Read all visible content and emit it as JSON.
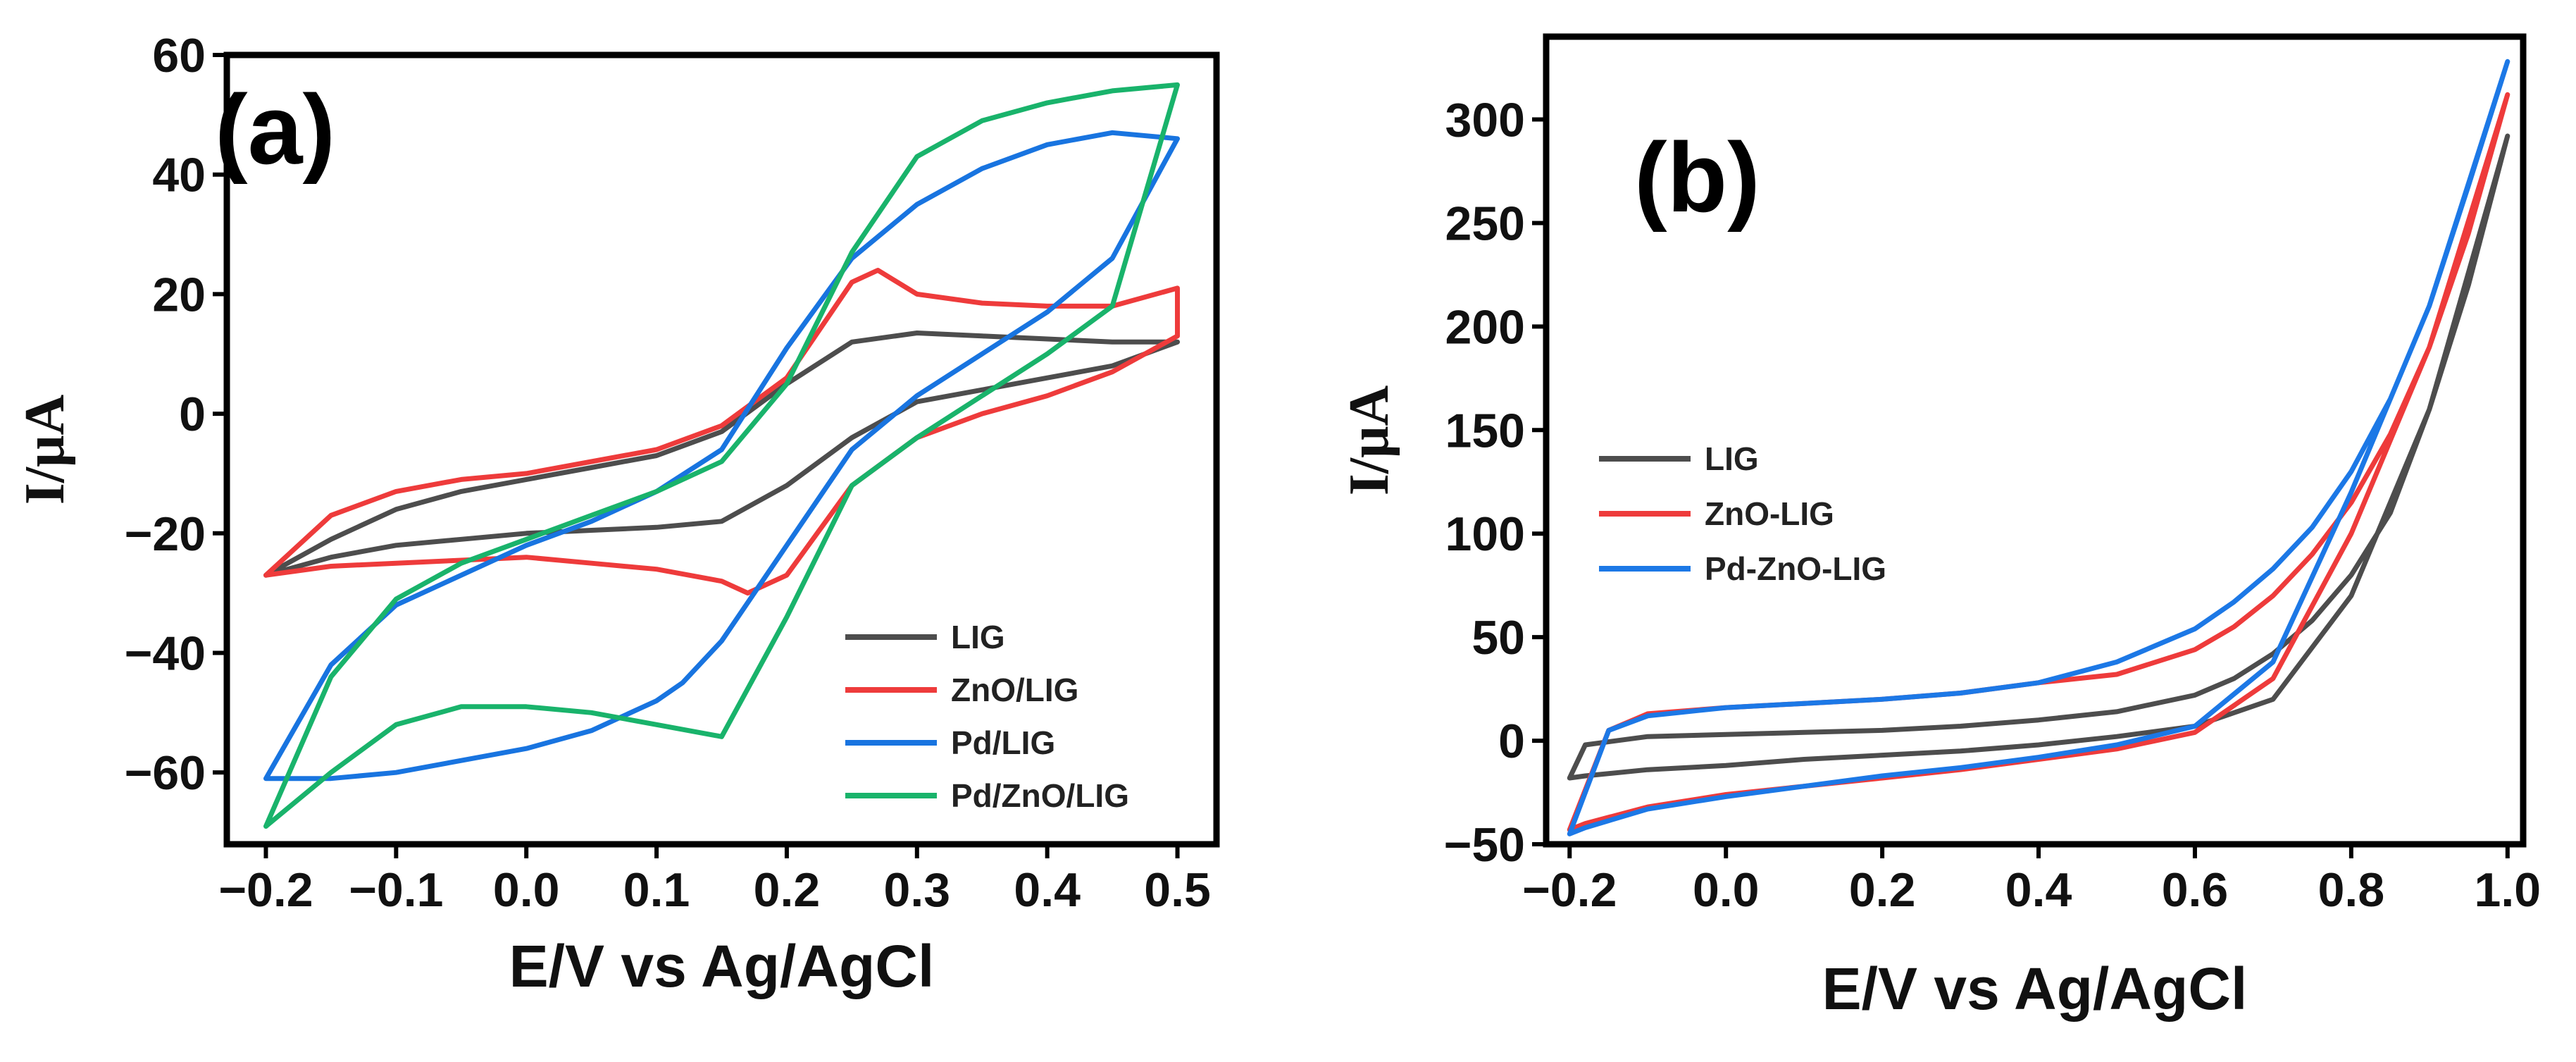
{
  "chart_data": [
    {
      "type": "line",
      "panel_label": "(a)",
      "xlabel": "E/V vs Ag/AgCl",
      "ylabel": "I/μA",
      "xlim": [
        -0.23,
        0.53
      ],
      "ylim": [
        -72,
        60
      ],
      "xticks": [
        -0.2,
        -0.1,
        0.0,
        0.1,
        0.2,
        0.3,
        0.4,
        0.5
      ],
      "xtick_labels": [
        "−0.2",
        "−0.1",
        "0.0",
        "0.1",
        "0.2",
        "0.3",
        "0.4",
        "0.5"
      ],
      "yticks": [
        60,
        40,
        20,
        0,
        -20,
        -40,
        -60
      ],
      "ytick_labels": [
        "60",
        "40",
        "20",
        "0",
        "−20",
        "−40",
        "−60"
      ],
      "legend_position": "bottom-right",
      "series": [
        {
          "name": "LIG",
          "color": "#4d4d4d",
          "x": [
            -0.2,
            -0.15,
            -0.1,
            -0.05,
            0.0,
            0.05,
            0.1,
            0.15,
            0.2,
            0.25,
            0.3,
            0.35,
            0.4,
            0.45,
            0.5,
            0.5,
            0.45,
            0.4,
            0.35,
            0.3,
            0.25,
            0.2,
            0.15,
            0.1,
            0.05,
            0.0,
            -0.05,
            -0.1,
            -0.15,
            -0.2
          ],
          "y": [
            -27,
            -24,
            -22,
            -21,
            -20,
            -19.5,
            -19,
            -18,
            -12,
            -4,
            2,
            4,
            6,
            8,
            12,
            12,
            12,
            12.5,
            13,
            13.5,
            12,
            5,
            -3,
            -7,
            -9,
            -11,
            -13,
            -16,
            -21,
            -27
          ]
        },
        {
          "name": "ZnO/LIG",
          "color": "#ee3b3b",
          "x": [
            -0.2,
            -0.15,
            -0.1,
            -0.05,
            0.0,
            0.05,
            0.1,
            0.15,
            0.17,
            0.2,
            0.25,
            0.3,
            0.35,
            0.4,
            0.45,
            0.5,
            0.5,
            0.45,
            0.4,
            0.35,
            0.3,
            0.27,
            0.25,
            0.2,
            0.15,
            0.1,
            0.05,
            0.0,
            -0.05,
            -0.1,
            -0.15,
            -0.2
          ],
          "y": [
            -27,
            -25.5,
            -25,
            -24.5,
            -24,
            -25,
            -26,
            -28,
            -30,
            -27,
            -12,
            -4,
            0,
            3,
            7,
            13,
            21,
            18,
            18,
            18.5,
            20,
            24,
            22,
            6,
            -2,
            -6,
            -8,
            -10,
            -11,
            -13,
            -17,
            -27
          ]
        },
        {
          "name": "Pd/LIG",
          "color": "#1874e0",
          "x": [
            -0.2,
            -0.15,
            -0.1,
            -0.05,
            0.0,
            0.05,
            0.1,
            0.12,
            0.15,
            0.2,
            0.25,
            0.3,
            0.35,
            0.4,
            0.45,
            0.5,
            0.5,
            0.45,
            0.4,
            0.35,
            0.3,
            0.25,
            0.2,
            0.15,
            0.1,
            0.05,
            0.0,
            -0.05,
            -0.1,
            -0.15,
            -0.2
          ],
          "y": [
            -61,
            -61,
            -60,
            -58,
            -56,
            -53,
            -48,
            -45,
            -38,
            -22,
            -6,
            3,
            10,
            17,
            26,
            46,
            46,
            47,
            45,
            41,
            35,
            26,
            11,
            -6,
            -13,
            -18,
            -22,
            -27,
            -32,
            -42,
            -61
          ]
        },
        {
          "name": "Pd/ZnO/LIG",
          "color": "#19b36b",
          "x": [
            -0.2,
            -0.15,
            -0.1,
            -0.05,
            0.0,
            0.05,
            0.1,
            0.15,
            0.2,
            0.25,
            0.3,
            0.35,
            0.4,
            0.45,
            0.5,
            0.5,
            0.45,
            0.4,
            0.35,
            0.3,
            0.25,
            0.2,
            0.15,
            0.1,
            0.05,
            0.0,
            -0.05,
            -0.1,
            -0.15,
            -0.2
          ],
          "y": [
            -69,
            -60,
            -52,
            -49,
            -49,
            -50,
            -52,
            -54,
            -34,
            -12,
            -4,
            3,
            10,
            18,
            55,
            55,
            54,
            52,
            49,
            43,
            27,
            5,
            -8,
            -13,
            -17,
            -21,
            -25,
            -31,
            -44,
            -69
          ]
        }
      ]
    },
    {
      "type": "line",
      "panel_label": "(b)",
      "xlabel": "E/V vs Ag/AgCl",
      "ylabel": "I/μA",
      "xlim": [
        -0.23,
        1.02
      ],
      "ylim": [
        -50,
        340
      ],
      "xticks": [
        -0.2,
        0.0,
        0.2,
        0.4,
        0.6,
        0.8,
        1.0
      ],
      "xtick_labels": [
        "−0.2",
        "0.0",
        "0.2",
        "0.4",
        "0.6",
        "0.8",
        "1.0"
      ],
      "yticks": [
        300,
        250,
        200,
        150,
        100,
        50,
        0,
        -50
      ],
      "ytick_labels": [
        "300",
        "250",
        "200",
        "150",
        "100",
        "50",
        "0",
        "−50"
      ],
      "legend_position": "middle-left",
      "series": [
        {
          "name": "LIG",
          "color": "#4d4d4d",
          "x": [
            -0.2,
            -0.18,
            -0.1,
            0.0,
            0.1,
            0.2,
            0.3,
            0.4,
            0.5,
            0.6,
            0.7,
            0.8,
            0.9,
            1.0,
            1.0,
            0.95,
            0.9,
            0.85,
            0.8,
            0.75,
            0.7,
            0.65,
            0.6,
            0.5,
            0.4,
            0.3,
            0.2,
            0.1,
            0.0,
            -0.1,
            -0.18,
            -0.2
          ],
          "y": [
            -18,
            -17,
            -14,
            -12,
            -9,
            -7,
            -5,
            -2,
            2,
            7,
            20,
            70,
            160,
            292,
            292,
            220,
            160,
            110,
            80,
            58,
            42,
            30,
            22,
            14,
            10,
            7,
            5,
            4,
            3,
            2,
            -2,
            -18
          ]
        },
        {
          "name": "ZnO-LIG",
          "color": "#ee3b3b",
          "x": [
            -0.2,
            -0.18,
            -0.1,
            0.0,
            0.1,
            0.2,
            0.3,
            0.4,
            0.5,
            0.6,
            0.7,
            0.8,
            0.9,
            1.0,
            1.0,
            0.95,
            0.9,
            0.85,
            0.8,
            0.75,
            0.7,
            0.65,
            0.6,
            0.5,
            0.4,
            0.3,
            0.2,
            0.1,
            0.0,
            -0.1,
            -0.15,
            -0.2
          ],
          "y": [
            -43,
            -40,
            -32,
            -26,
            -22,
            -18,
            -14,
            -9,
            -4,
            4,
            30,
            100,
            190,
            312,
            312,
            245,
            190,
            148,
            115,
            90,
            70,
            55,
            44,
            32,
            28,
            23,
            20,
            18,
            16,
            13,
            5,
            -43
          ]
        },
        {
          "name": "Pd-ZnO-LIG",
          "color": "#1c78e6",
          "x": [
            -0.2,
            -0.18,
            -0.1,
            0.0,
            0.1,
            0.2,
            0.3,
            0.4,
            0.5,
            0.6,
            0.7,
            0.8,
            0.9,
            1.0,
            1.0,
            0.95,
            0.9,
            0.85,
            0.8,
            0.75,
            0.7,
            0.65,
            0.6,
            0.5,
            0.4,
            0.3,
            0.2,
            0.1,
            0.0,
            -0.1,
            -0.15,
            -0.2
          ],
          "y": [
            -45,
            -42,
            -33,
            -27,
            -22,
            -17,
            -13,
            -8,
            -2,
            7,
            38,
            120,
            210,
            328,
            328,
            268,
            210,
            165,
            130,
            103,
            83,
            67,
            54,
            38,
            28,
            23,
            20,
            18,
            16,
            12,
            5,
            -45
          ]
        }
      ]
    }
  ]
}
